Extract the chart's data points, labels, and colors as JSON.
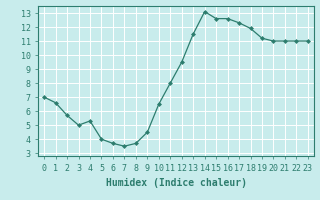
{
  "x": [
    0,
    1,
    2,
    3,
    4,
    5,
    6,
    7,
    8,
    9,
    10,
    11,
    12,
    13,
    14,
    15,
    16,
    17,
    18,
    19,
    20,
    21,
    22,
    23
  ],
  "y": [
    7.0,
    6.6,
    5.7,
    5.0,
    5.3,
    4.0,
    3.7,
    3.5,
    3.7,
    4.5,
    6.5,
    8.0,
    9.5,
    11.5,
    13.1,
    12.6,
    12.6,
    12.3,
    11.9,
    11.2,
    11.0,
    11.0,
    11.0,
    11.0
  ],
  "xlabel": "Humidex (Indice chaleur)",
  "xlim": [
    -0.5,
    23.5
  ],
  "ylim": [
    2.8,
    13.5
  ],
  "yticks": [
    3,
    4,
    5,
    6,
    7,
    8,
    9,
    10,
    11,
    12,
    13
  ],
  "xticks": [
    0,
    1,
    2,
    3,
    4,
    5,
    6,
    7,
    8,
    9,
    10,
    11,
    12,
    13,
    14,
    15,
    16,
    17,
    18,
    19,
    20,
    21,
    22,
    23
  ],
  "line_color": "#2d7d6e",
  "marker": "D",
  "marker_size": 2.0,
  "bg_color": "#c8ecec",
  "grid_color": "#ffffff",
  "tick_color": "#2d7d6e",
  "label_color": "#2d7d6e",
  "xlabel_fontsize": 7,
  "tick_fontsize": 6,
  "linewidth": 0.9
}
